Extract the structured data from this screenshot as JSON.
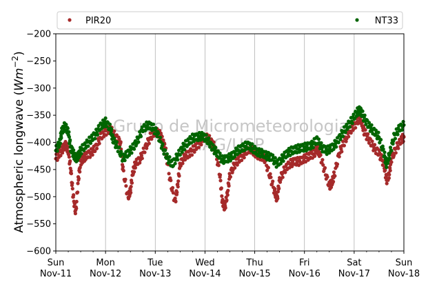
{
  "chart_data": {
    "type": "scatter",
    "ylabel_main": "Atmospheric longwave (",
    "ylabel_unit_base": "Wm",
    "ylabel_unit_exp": "−2",
    "ylabel_close": ")",
    "ylim": [
      -600,
      -200
    ],
    "yticks": [
      -600,
      -550,
      -500,
      -450,
      -400,
      -350,
      -300,
      -250,
      -200
    ],
    "ytick_labels": [
      "−600",
      "−550",
      "−500",
      "−450",
      "−400",
      "−350",
      "−300",
      "−250",
      "−200"
    ],
    "xlim": [
      "2018-11-11 00:00",
      "2018-11-18 00:00"
    ],
    "xticks": [
      {
        "day": "Sun",
        "date": "Nov-11"
      },
      {
        "day": "Mon",
        "date": "Nov-12"
      },
      {
        "day": "Tue",
        "date": "Nov-13"
      },
      {
        "day": "Wed",
        "date": "Nov-14"
      },
      {
        "day": "Thu",
        "date": "Nov-15"
      },
      {
        "day": "Fri",
        "date": "Nov-16"
      },
      {
        "day": "Sat",
        "date": "Nov-17"
      },
      {
        "day": "Sun",
        "date": "Nov-18"
      }
    ],
    "grid": "vertical",
    "legend_placement": "top",
    "watermark": [
      "Grupo de Micrometeorologia",
      "IAG/USP"
    ],
    "series": [
      {
        "name": "PIR20",
        "color": "#a52a2a",
        "points": [
          [
            0.0,
            -430
          ],
          [
            0.08,
            -420
          ],
          [
            0.15,
            -410
          ],
          [
            0.2,
            -405
          ],
          [
            0.25,
            -415
          ],
          [
            0.3,
            -450
          ],
          [
            0.35,
            -500
          ],
          [
            0.4,
            -530
          ],
          [
            0.45,
            -470
          ],
          [
            0.5,
            -435
          ],
          [
            0.55,
            -430
          ],
          [
            0.6,
            -425
          ],
          [
            0.7,
            -420
          ],
          [
            0.8,
            -410
          ],
          [
            0.9,
            -390
          ],
          [
            1.0,
            -380
          ],
          [
            1.1,
            -375
          ],
          [
            1.2,
            -390
          ],
          [
            1.3,
            -400
          ],
          [
            1.35,
            -450
          ],
          [
            1.45,
            -500
          ],
          [
            1.5,
            -490
          ],
          [
            1.55,
            -455
          ],
          [
            1.6,
            -440
          ],
          [
            1.7,
            -430
          ],
          [
            1.8,
            -410
          ],
          [
            1.9,
            -390
          ],
          [
            2.0,
            -380
          ],
          [
            2.1,
            -385
          ],
          [
            2.15,
            -400
          ],
          [
            2.2,
            -410
          ],
          [
            2.3,
            -470
          ],
          [
            2.4,
            -510
          ],
          [
            2.45,
            -480
          ],
          [
            2.5,
            -440
          ],
          [
            2.6,
            -425
          ],
          [
            2.7,
            -420
          ],
          [
            2.8,
            -410
          ],
          [
            2.9,
            -400
          ],
          [
            3.0,
            -390
          ],
          [
            3.1,
            -395
          ],
          [
            3.2,
            -410
          ],
          [
            3.3,
            -460
          ],
          [
            3.35,
            -510
          ],
          [
            3.4,
            -520
          ],
          [
            3.45,
            -495
          ],
          [
            3.5,
            -460
          ],
          [
            3.6,
            -440
          ],
          [
            3.7,
            -430
          ],
          [
            3.8,
            -420
          ],
          [
            3.9,
            -410
          ],
          [
            4.0,
            -420
          ],
          [
            4.1,
            -425
          ],
          [
            4.2,
            -430
          ],
          [
            4.3,
            -460
          ],
          [
            4.4,
            -490
          ],
          [
            4.45,
            -505
          ],
          [
            4.5,
            -470
          ],
          [
            4.6,
            -450
          ],
          [
            4.7,
            -440
          ],
          [
            4.8,
            -435
          ],
          [
            4.9,
            -435
          ],
          [
            5.0,
            -430
          ],
          [
            5.1,
            -425
          ],
          [
            5.2,
            -420
          ],
          [
            5.25,
            -410
          ],
          [
            5.3,
            -420
          ],
          [
            5.4,
            -450
          ],
          [
            5.5,
            -480
          ],
          [
            5.55,
            -475
          ],
          [
            5.6,
            -460
          ],
          [
            5.7,
            -420
          ],
          [
            5.8,
            -400
          ],
          [
            5.9,
            -380
          ],
          [
            6.0,
            -370
          ],
          [
            6.1,
            -355
          ],
          [
            6.15,
            -360
          ],
          [
            6.2,
            -380
          ],
          [
            6.3,
            -395
          ],
          [
            6.4,
            -410
          ],
          [
            6.5,
            -420
          ],
          [
            6.6,
            -440
          ],
          [
            6.65,
            -470
          ],
          [
            6.7,
            -460
          ],
          [
            6.75,
            -430
          ],
          [
            6.85,
            -410
          ],
          [
            6.95,
            -395
          ],
          [
            7.0,
            -390
          ]
        ]
      },
      {
        "name": "NT33",
        "color": "#006400",
        "points": [
          [
            0.0,
            -415
          ],
          [
            0.08,
            -400
          ],
          [
            0.12,
            -380
          ],
          [
            0.18,
            -370
          ],
          [
            0.25,
            -380
          ],
          [
            0.3,
            -410
          ],
          [
            0.35,
            -420
          ],
          [
            0.4,
            -430
          ],
          [
            0.45,
            -425
          ],
          [
            0.5,
            -415
          ],
          [
            0.6,
            -405
          ],
          [
            0.7,
            -395
          ],
          [
            0.8,
            -385
          ],
          [
            0.9,
            -370
          ],
          [
            1.0,
            -362
          ],
          [
            1.1,
            -375
          ],
          [
            1.15,
            -395
          ],
          [
            1.25,
            -410
          ],
          [
            1.35,
            -430
          ],
          [
            1.45,
            -420
          ],
          [
            1.55,
            -410
          ],
          [
            1.65,
            -395
          ],
          [
            1.75,
            -375
          ],
          [
            1.85,
            -368
          ],
          [
            1.95,
            -372
          ],
          [
            2.05,
            -385
          ],
          [
            2.15,
            -410
          ],
          [
            2.25,
            -430
          ],
          [
            2.35,
            -440
          ],
          [
            2.45,
            -425
          ],
          [
            2.55,
            -410
          ],
          [
            2.65,
            -400
          ],
          [
            2.75,
            -392
          ],
          [
            2.85,
            -390
          ],
          [
            2.95,
            -388
          ],
          [
            3.05,
            -395
          ],
          [
            3.15,
            -410
          ],
          [
            3.25,
            -420
          ],
          [
            3.35,
            -432
          ],
          [
            3.45,
            -430
          ],
          [
            3.55,
            -425
          ],
          [
            3.65,
            -415
          ],
          [
            3.75,
            -410
          ],
          [
            3.85,
            -405
          ],
          [
            3.95,
            -410
          ],
          [
            4.05,
            -418
          ],
          [
            4.15,
            -420
          ],
          [
            4.25,
            -425
          ],
          [
            4.35,
            -428
          ],
          [
            4.45,
            -440
          ],
          [
            4.55,
            -430
          ],
          [
            4.65,
            -420
          ],
          [
            4.75,
            -415
          ],
          [
            4.85,
            -412
          ],
          [
            4.95,
            -410
          ],
          [
            5.05,
            -408
          ],
          [
            5.15,
            -405
          ],
          [
            5.25,
            -395
          ],
          [
            5.35,
            -410
          ],
          [
            5.45,
            -415
          ],
          [
            5.55,
            -410
          ],
          [
            5.65,
            -400
          ],
          [
            5.75,
            -385
          ],
          [
            5.85,
            -372
          ],
          [
            5.95,
            -360
          ],
          [
            6.05,
            -345
          ],
          [
            6.12,
            -340
          ],
          [
            6.2,
            -355
          ],
          [
            6.3,
            -370
          ],
          [
            6.4,
            -380
          ],
          [
            6.5,
            -390
          ],
          [
            6.6,
            -420
          ],
          [
            6.65,
            -440
          ],
          [
            6.72,
            -420
          ],
          [
            6.8,
            -390
          ],
          [
            6.9,
            -375
          ],
          [
            7.0,
            -368
          ]
        ]
      }
    ]
  }
}
